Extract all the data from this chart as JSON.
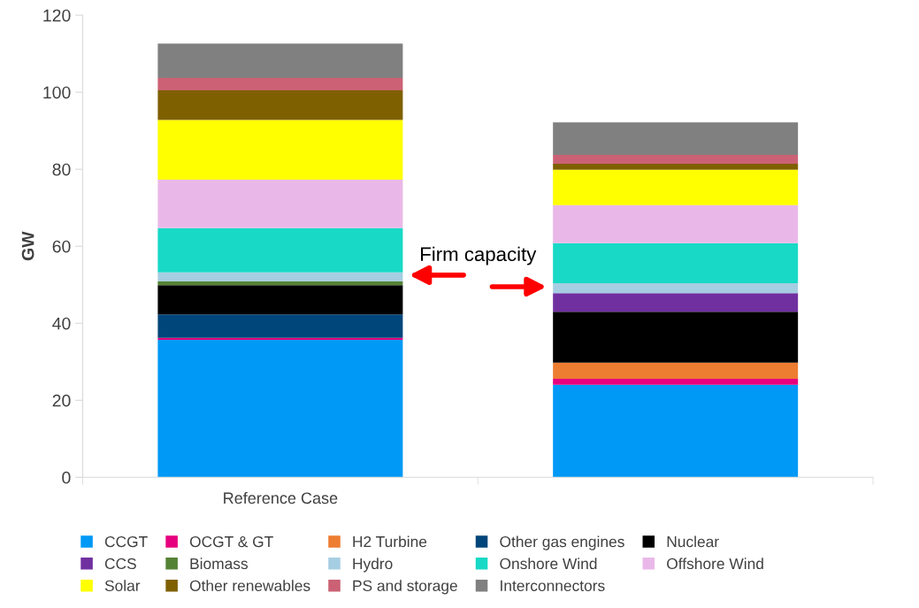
{
  "chart_data": {
    "type": "bar",
    "stacked": true,
    "ylabel": "GW",
    "categories": [
      "Reference Case",
      null
    ],
    "series": [
      {
        "name": "CCGT",
        "color": "#0099f5",
        "values": [
          35.7,
          24.0
        ]
      },
      {
        "name": "OCGT & GT",
        "color": "#e6007e",
        "values": [
          0.5,
          1.6
        ]
      },
      {
        "name": "H2 Turbine",
        "color": "#ed7d31",
        "values": [
          0,
          4.2
        ]
      },
      {
        "name": "Other gas engines",
        "color": "#00467a",
        "values": [
          6.1,
          0
        ]
      },
      {
        "name": "Nuclear",
        "color": "#000000",
        "values": [
          7.6,
          13.2
        ]
      },
      {
        "name": "CCS",
        "color": "#7030a0",
        "values": [
          0,
          4.8
        ]
      },
      {
        "name": "Biomass",
        "color": "#548235",
        "values": [
          1.0,
          0
        ]
      },
      {
        "name": "Hydro",
        "color": "#a6cee3",
        "values": [
          2.3,
          2.6
        ]
      },
      {
        "name": "Onshore Wind",
        "color": "#17d9c6",
        "values": [
          11.5,
          10.4
        ]
      },
      {
        "name": "Offshore Wind",
        "color": "#eab8e8",
        "values": [
          12.6,
          9.9
        ]
      },
      {
        "name": "Solar",
        "color": "#ffff00",
        "values": [
          15.5,
          9.2
        ]
      },
      {
        "name": "Other renewables",
        "color": "#7f6000",
        "values": [
          7.7,
          1.5
        ]
      },
      {
        "name": "PS and storage",
        "color": "#cc6175",
        "values": [
          3.2,
          2.3
        ]
      },
      {
        "name": "Interconnectors",
        "color": "#808080",
        "values": [
          8.9,
          8.5
        ]
      }
    ],
    "ylim": [
      0,
      120
    ],
    "yticks": [
      0,
      20,
      40,
      60,
      80,
      100,
      120
    ],
    "grid": false,
    "legend": "bottom",
    "annotations": [
      "Firm capacity"
    ]
  }
}
